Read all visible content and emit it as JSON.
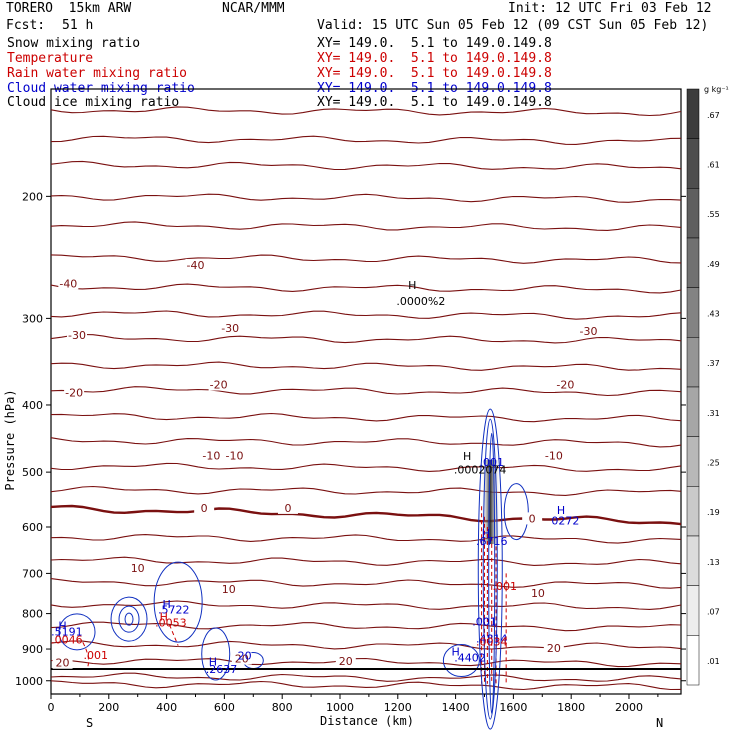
{
  "header": {
    "model": "TORERO  15km ARW",
    "org": "NCAR/MMM",
    "init": "Init: 12 UTC Fri 03 Feb 12",
    "fcst_label": "Fcst:",
    "fcst_value": "51 h",
    "valid": "Valid: 15 UTC Sun 05 Feb 12 (09 CST Sun 05 Feb 12)"
  },
  "fields": [
    {
      "name": "Snow mixing ratio",
      "xy": "XY= 149.0.  5.1 to 149.0.149.8",
      "color": "#000000"
    },
    {
      "name": "Temperature",
      "xy": "XY= 149.0.  5.1 to 149.0.149.8",
      "color": "#cc0000"
    },
    {
      "name": "Rain water mixing ratio",
      "xy": "XY= 149.0.  5.1 to 149.0.149.8",
      "color": "#cc0000"
    },
    {
      "name": "Cloud water mixing ratio",
      "xy": "XY= 149.0.  5.1 to 149.0.149.8",
      "color": "#0000cc"
    },
    {
      "name": "Cloud ice mixing ratio",
      "xy": "XY= 149.0.  5.1 to 149.0.149.8",
      "color": "#000000"
    }
  ],
  "colorbar": {
    "unit": "g kg⁻¹",
    "labels": [
      ".67",
      ".61",
      ".55",
      ".49",
      ".43",
      ".37",
      ".31",
      ".25",
      ".19",
      ".13",
      ".07",
      ".01"
    ]
  },
  "chart_data": {
    "type": "contour",
    "xlabel": "Distance (km)",
    "ylabel": "Pressure (hPa)",
    "x_ticks": [
      0,
      200,
      400,
      600,
      800,
      1000,
      1200,
      1400,
      1600,
      1800,
      2000
    ],
    "y_ticks": [
      200,
      300,
      400,
      500,
      600,
      700,
      800,
      900,
      1000
    ],
    "xlim": [
      0,
      2180
    ],
    "ylim": [
      1045,
      140
    ],
    "y_scale": "log",
    "x_end_labels": {
      "left": "S",
      "right": "N"
    },
    "temperature_labels": [
      {
        "text": "-40",
        "x": 60,
        "p": 268
      },
      {
        "text": "-40",
        "x": 500,
        "p": 252
      },
      {
        "text": "-30",
        "x": 90,
        "p": 318
      },
      {
        "text": "-30",
        "x": 620,
        "p": 311
      },
      {
        "text": "-30",
        "x": 1860,
        "p": 314
      },
      {
        "text": "-20",
        "x": 80,
        "p": 385
      },
      {
        "text": "-20",
        "x": 580,
        "p": 375
      },
      {
        "text": "-20",
        "x": 1780,
        "p": 375
      },
      {
        "text": "-10",
        "x": 555,
        "p": 475
      },
      {
        "text": "-10",
        "x": 635,
        "p": 475
      },
      {
        "text": "-10",
        "x": 1740,
        "p": 475
      },
      {
        "text": "0",
        "x": 530,
        "p": 565
      },
      {
        "text": "0",
        "x": 820,
        "p": 565
      },
      {
        "text": "0",
        "x": 1665,
        "p": 585
      },
      {
        "text": "10",
        "x": 300,
        "p": 690
      },
      {
        "text": "10",
        "x": 615,
        "p": 740
      },
      {
        "text": "10",
        "x": 1685,
        "p": 750
      },
      {
        "text": "20",
        "x": 40,
        "p": 945
      },
      {
        "text": "20",
        "x": 660,
        "p": 932
      },
      {
        "text": "20",
        "x": 1020,
        "p": 940
      },
      {
        "text": "20",
        "x": 1740,
        "p": 900
      }
    ],
    "annotations": [
      {
        "text": "H",
        "x": 1250,
        "p": 272,
        "color": "#000000"
      },
      {
        "text": ".0000%2",
        "x": 1280,
        "p": 287,
        "color": "#000000"
      },
      {
        "text": "H",
        "x": 1440,
        "p": 480,
        "color": "#000000"
      },
      {
        "text": ".0002074",
        "x": 1485,
        "p": 502,
        "color": "#000000"
      },
      {
        "text": ".001",
        "x": 1525,
        "p": 490,
        "color": "#0000cc"
      },
      {
        "text": "H",
        "x": 1765,
        "p": 575,
        "color": "#0000cc"
      },
      {
        "text": "0272",
        "x": 1780,
        "p": 595,
        "color": "#0000cc"
      },
      {
        "text": "H",
        "x": 1505,
        "p": 620,
        "color": "#0000cc"
      },
      {
        "text": ".6716",
        "x": 1525,
        "p": 637,
        "color": "#0000cc"
      },
      {
        "text": ".001",
        "x": 1570,
        "p": 740,
        "color": "#cc0000"
      },
      {
        "text": ".001",
        "x": 1500,
        "p": 832,
        "color": "#0000cc"
      },
      {
        "text": ".4814",
        "x": 1525,
        "p": 880,
        "color": "#0000cc"
      },
      {
        "text": ".0034",
        "x": 1525,
        "p": 890,
        "color": "#cc0000"
      },
      {
        "text": "H",
        "x": 1400,
        "p": 920,
        "color": "#0000cc"
      },
      {
        "text": ".4402",
        "x": 1450,
        "p": 938,
        "color": "#0000cc"
      },
      {
        "text": "H",
        "x": 400,
        "p": 785,
        "color": "#0000cc"
      },
      {
        "text": ".5722",
        "x": 425,
        "p": 800,
        "color": "#0000cc"
      },
      {
        "text": "H",
        "x": 390,
        "p": 818,
        "color": "#cc0000"
      },
      {
        "text": ".0053",
        "x": 415,
        "p": 835,
        "color": "#cc0000"
      },
      {
        "text": "H",
        "x": 40,
        "p": 843,
        "color": "#0000cc"
      },
      {
        "text": ".5191",
        "x": 55,
        "p": 860,
        "color": "#0000cc"
      },
      {
        "text": ".0046",
        "x": 55,
        "p": 883,
        "color": "#cc0000"
      },
      {
        "text": ".001",
        "x": 155,
        "p": 930,
        "color": "#cc0000"
      },
      {
        "text": "H",
        "x": 560,
        "p": 950,
        "color": "#0000cc"
      },
      {
        "text": ".2637",
        "x": 590,
        "p": 975,
        "color": "#0000cc"
      },
      {
        "text": "20",
        "x": 670,
        "p": 932,
        "color": "#0000cc"
      }
    ]
  }
}
